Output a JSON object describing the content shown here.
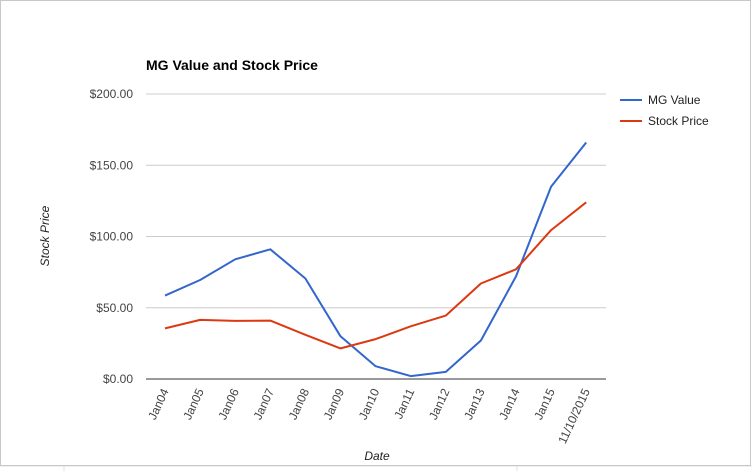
{
  "chart_data": {
    "type": "line",
    "title": "MG Value and Stock Price",
    "xlabel": "Date",
    "ylabel": "Stock Price",
    "categories": [
      "Jan04",
      "Jan05",
      "Jan06",
      "Jan07",
      "Jan08",
      "Jan09",
      "Jan10",
      "Jan11",
      "Jan12",
      "Jan13",
      "Jan14",
      "Jan15",
      "11/10/2015"
    ],
    "series": [
      {
        "name": "MG Value",
        "color": "#3366cc",
        "values": [
          58.5,
          69.5,
          84,
          91,
          70.5,
          30,
          9,
          2,
          5,
          27,
          72,
          135,
          166
        ]
      },
      {
        "name": "Stock Price",
        "color": "#dc3912",
        "values": [
          35.5,
          41.5,
          40.8,
          41,
          31,
          21.5,
          28,
          37,
          44.5,
          67,
          77,
          104.5,
          124
        ]
      }
    ],
    "ylim": [
      0,
      200
    ],
    "yticks": [
      0,
      50,
      100,
      150,
      200
    ],
    "ytick_labels": [
      "$0.00",
      "$50.00",
      "$100.00",
      "$150.00",
      "$200.00"
    ],
    "grid": true,
    "legend_position": "right"
  }
}
